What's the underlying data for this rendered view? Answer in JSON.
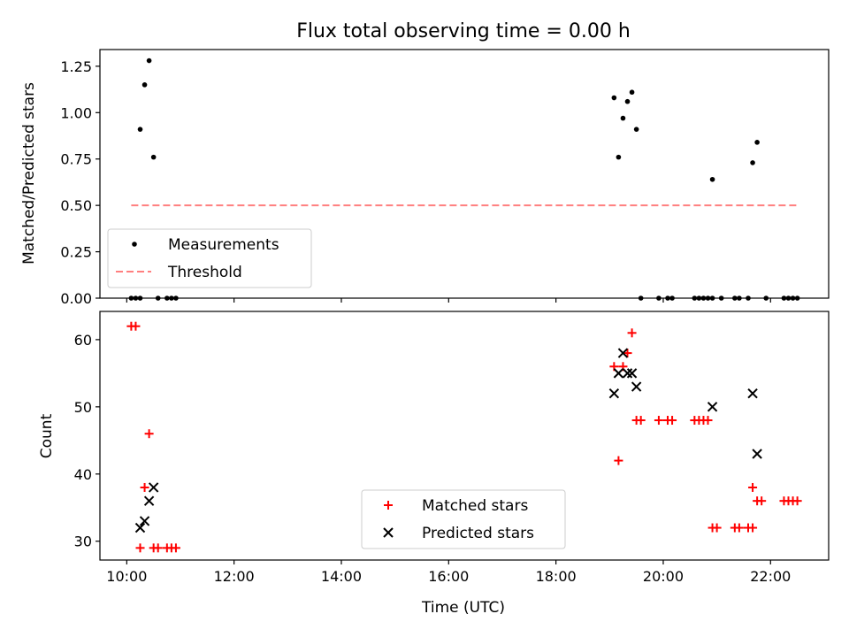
{
  "figure": {
    "title": "Flux total observing time = 0.00 h",
    "xlabel": "Time (UTC)"
  },
  "colors": {
    "matched": "#ff0000",
    "predicted": "#000000",
    "threshold": "#ff7f7f",
    "measurement": "#000000"
  },
  "chart_data": [
    {
      "type": "scatter",
      "ylabel": "Matched/Predicted stars",
      "xlim": [
        "09:30",
        "23:05"
      ],
      "ylim": [
        0,
        1.34
      ],
      "yticks": [
        "0.00",
        "0.25",
        "0.50",
        "0.75",
        "1.00",
        "1.25"
      ],
      "legend_position": "lower-left",
      "legend": [
        "Measurements",
        "Threshold"
      ],
      "series": [
        {
          "name": "Measurements",
          "marker": "dot",
          "points": [
            [
              "10:05",
              0
            ],
            [
              "10:10",
              0
            ],
            [
              "10:15",
              0
            ],
            [
              "10:15",
              0.91
            ],
            [
              "10:20",
              1.15
            ],
            [
              "10:25",
              1.28
            ],
            [
              "10:30",
              0.76
            ],
            [
              "10:35",
              0
            ],
            [
              "10:45",
              0
            ],
            [
              "10:50",
              0
            ],
            [
              "10:55",
              0
            ],
            [
              "19:05",
              1.08
            ],
            [
              "19:10",
              0.76
            ],
            [
              "19:15",
              0.97
            ],
            [
              "19:20",
              1.06
            ],
            [
              "19:25",
              1.11
            ],
            [
              "19:30",
              0.91
            ],
            [
              "19:35",
              0
            ],
            [
              "19:55",
              0
            ],
            [
              "20:05",
              0
            ],
            [
              "20:10",
              0
            ],
            [
              "20:35",
              0
            ],
            [
              "20:40",
              0
            ],
            [
              "20:45",
              0
            ],
            [
              "20:50",
              0
            ],
            [
              "20:55",
              0
            ],
            [
              "20:55",
              0.64
            ],
            [
              "21:05",
              0
            ],
            [
              "21:20",
              0
            ],
            [
              "21:25",
              0
            ],
            [
              "21:35",
              0
            ],
            [
              "21:40",
              0.73
            ],
            [
              "21:45",
              0.84
            ],
            [
              "21:55",
              0
            ],
            [
              "22:15",
              0
            ],
            [
              "22:20",
              0
            ],
            [
              "22:25",
              0
            ],
            [
              "22:30",
              0
            ]
          ]
        },
        {
          "name": "Threshold",
          "marker": "dashed-line",
          "points": [
            [
              "10:05",
              0.5
            ],
            [
              "22:30",
              0.5
            ]
          ]
        }
      ]
    },
    {
      "type": "scatter",
      "ylabel": "Count",
      "xlim": [
        "09:30",
        "23:05"
      ],
      "ylim": [
        27.2,
        64.2
      ],
      "yticks": [
        "30",
        "40",
        "50",
        "60"
      ],
      "xticks": [
        "10:00",
        "12:00",
        "14:00",
        "16:00",
        "18:00",
        "20:00",
        "22:00"
      ],
      "legend_position": "lower-center",
      "legend": [
        "Matched stars",
        "Predicted stars"
      ],
      "series": [
        {
          "name": "Matched stars",
          "marker": "plus",
          "points": [
            [
              "10:05",
              62
            ],
            [
              "10:10",
              62
            ],
            [
              "10:15",
              29
            ],
            [
              "10:20",
              38
            ],
            [
              "10:25",
              46
            ],
            [
              "10:30",
              29
            ],
            [
              "10:35",
              29
            ],
            [
              "10:45",
              29
            ],
            [
              "10:50",
              29
            ],
            [
              "10:55",
              29
            ],
            [
              "19:05",
              56
            ],
            [
              "19:10",
              42
            ],
            [
              "19:15",
              56
            ],
            [
              "19:20",
              58
            ],
            [
              "19:25",
              61
            ],
            [
              "19:30",
              48
            ],
            [
              "19:35",
              48
            ],
            [
              "19:55",
              48
            ],
            [
              "20:05",
              48
            ],
            [
              "20:10",
              48
            ],
            [
              "20:35",
              48
            ],
            [
              "20:40",
              48
            ],
            [
              "20:45",
              48
            ],
            [
              "20:50",
              48
            ],
            [
              "20:55",
              32
            ],
            [
              "21:00",
              32
            ],
            [
              "21:20",
              32
            ],
            [
              "21:25",
              32
            ],
            [
              "21:35",
              32
            ],
            [
              "21:40",
              32
            ],
            [
              "21:40",
              38
            ],
            [
              "21:45",
              36
            ],
            [
              "21:50",
              36
            ],
            [
              "22:15",
              36
            ],
            [
              "22:20",
              36
            ],
            [
              "22:25",
              36
            ],
            [
              "22:30",
              36
            ]
          ]
        },
        {
          "name": "Predicted stars",
          "marker": "cross",
          "points": [
            [
              "10:15",
              32
            ],
            [
              "10:20",
              33
            ],
            [
              "10:25",
              36
            ],
            [
              "10:30",
              38
            ],
            [
              "19:05",
              52
            ],
            [
              "19:10",
              55
            ],
            [
              "19:15",
              58
            ],
            [
              "19:20",
              55
            ],
            [
              "19:25",
              55
            ],
            [
              "19:30",
              53
            ],
            [
              "20:55",
              50
            ],
            [
              "21:40",
              52
            ],
            [
              "21:45",
              43
            ]
          ]
        }
      ]
    }
  ]
}
